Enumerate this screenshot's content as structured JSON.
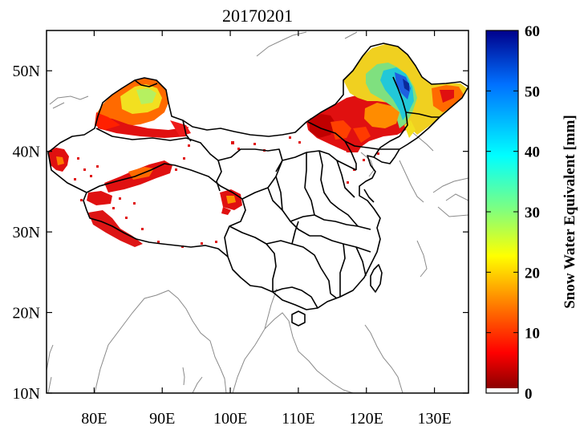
{
  "map": {
    "title": "20170201",
    "lon_range": [
      73,
      135
    ],
    "lat_range": [
      10,
      55
    ],
    "lon_ticks": [
      {
        "value": 80,
        "label": "80E"
      },
      {
        "value": 90,
        "label": "90E"
      },
      {
        "value": 100,
        "label": "100E"
      },
      {
        "value": 110,
        "label": "110E"
      },
      {
        "value": 120,
        "label": "120E"
      },
      {
        "value": 130,
        "label": "130E"
      }
    ],
    "lat_ticks": [
      {
        "value": 10,
        "label": "10N"
      },
      {
        "value": 20,
        "label": "20N"
      },
      {
        "value": 30,
        "label": "30N"
      },
      {
        "value": 40,
        "label": "40N"
      },
      {
        "value": 50,
        "label": "50N"
      }
    ]
  },
  "colorbar": {
    "label": "Snow Water Equivalent [mm]",
    "range": [
      0,
      60
    ],
    "ticks": [
      {
        "value": 0,
        "label": "0"
      },
      {
        "value": 10,
        "label": "10"
      },
      {
        "value": 20,
        "label": "20"
      },
      {
        "value": 30,
        "label": "30"
      },
      {
        "value": 40,
        "label": "40"
      },
      {
        "value": 50,
        "label": "50"
      },
      {
        "value": 60,
        "label": "60"
      }
    ],
    "colors": [
      "#ffffff",
      "#8b0000",
      "#ff0000",
      "#ff8c00",
      "#ffff00",
      "#7fff7f",
      "#00ffff",
      "#0070ff",
      "#00008b"
    ]
  },
  "colors": {
    "china_border": "#000000",
    "coastline": "#888888",
    "frame": "#000000"
  }
}
